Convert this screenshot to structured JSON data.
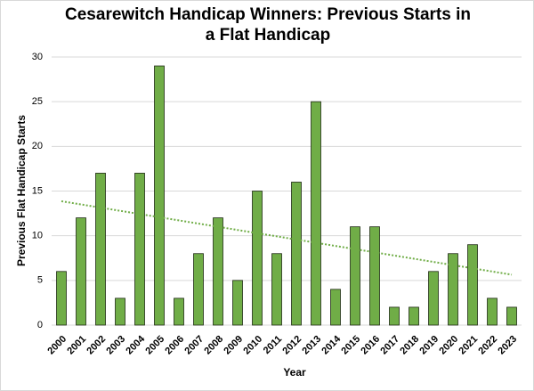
{
  "chart_data": {
    "type": "bar",
    "title": "Cesarewitch Handicap Winners: Previous Starts in a Flat Handicap",
    "x_label": "Year",
    "y_label": "Previous Flat Handicap Starts",
    "categories": [
      "2000",
      "2001",
      "2002",
      "2003",
      "2004",
      "2005",
      "2006",
      "2007",
      "2008",
      "2009",
      "2010",
      "2011",
      "2012",
      "2013",
      "2014",
      "2015",
      "2016",
      "2017",
      "2018",
      "2019",
      "2020",
      "2021",
      "2022",
      "2023"
    ],
    "values": [
      6,
      12,
      17,
      3,
      17,
      29,
      3,
      8,
      12,
      5,
      15,
      8,
      16,
      25,
      4,
      11,
      11,
      2,
      2,
      6,
      8,
      9,
      3,
      2
    ],
    "color": "#70ad47",
    "trendline": "linear",
    "ylim": [
      0,
      30
    ],
    "yticks": [
      0,
      5,
      10,
      15,
      20,
      25,
      30
    ],
    "grid": true
  }
}
